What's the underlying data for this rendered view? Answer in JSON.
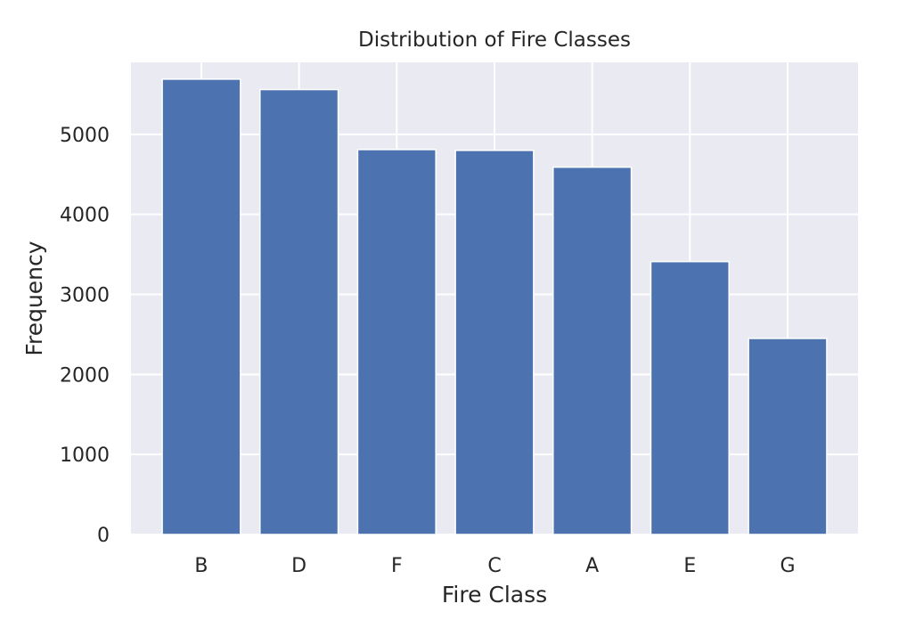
{
  "chart_data": {
    "type": "bar",
    "title": "Distribution of Fire Classes",
    "xlabel": "Fire Class",
    "ylabel": "Frequency",
    "categories": [
      "B",
      "D",
      "F",
      "C",
      "A",
      "E",
      "G"
    ],
    "values": [
      5690,
      5560,
      4810,
      4800,
      4590,
      3410,
      2450
    ],
    "ylim": [
      0,
      5900
    ],
    "yticks": [
      0,
      1000,
      2000,
      3000,
      4000,
      5000
    ],
    "grid": true,
    "legend": "none",
    "colors": {
      "bar": "#4C72B0",
      "plot_background": "#EAEAF2",
      "grid": "#FFFFFF"
    }
  }
}
